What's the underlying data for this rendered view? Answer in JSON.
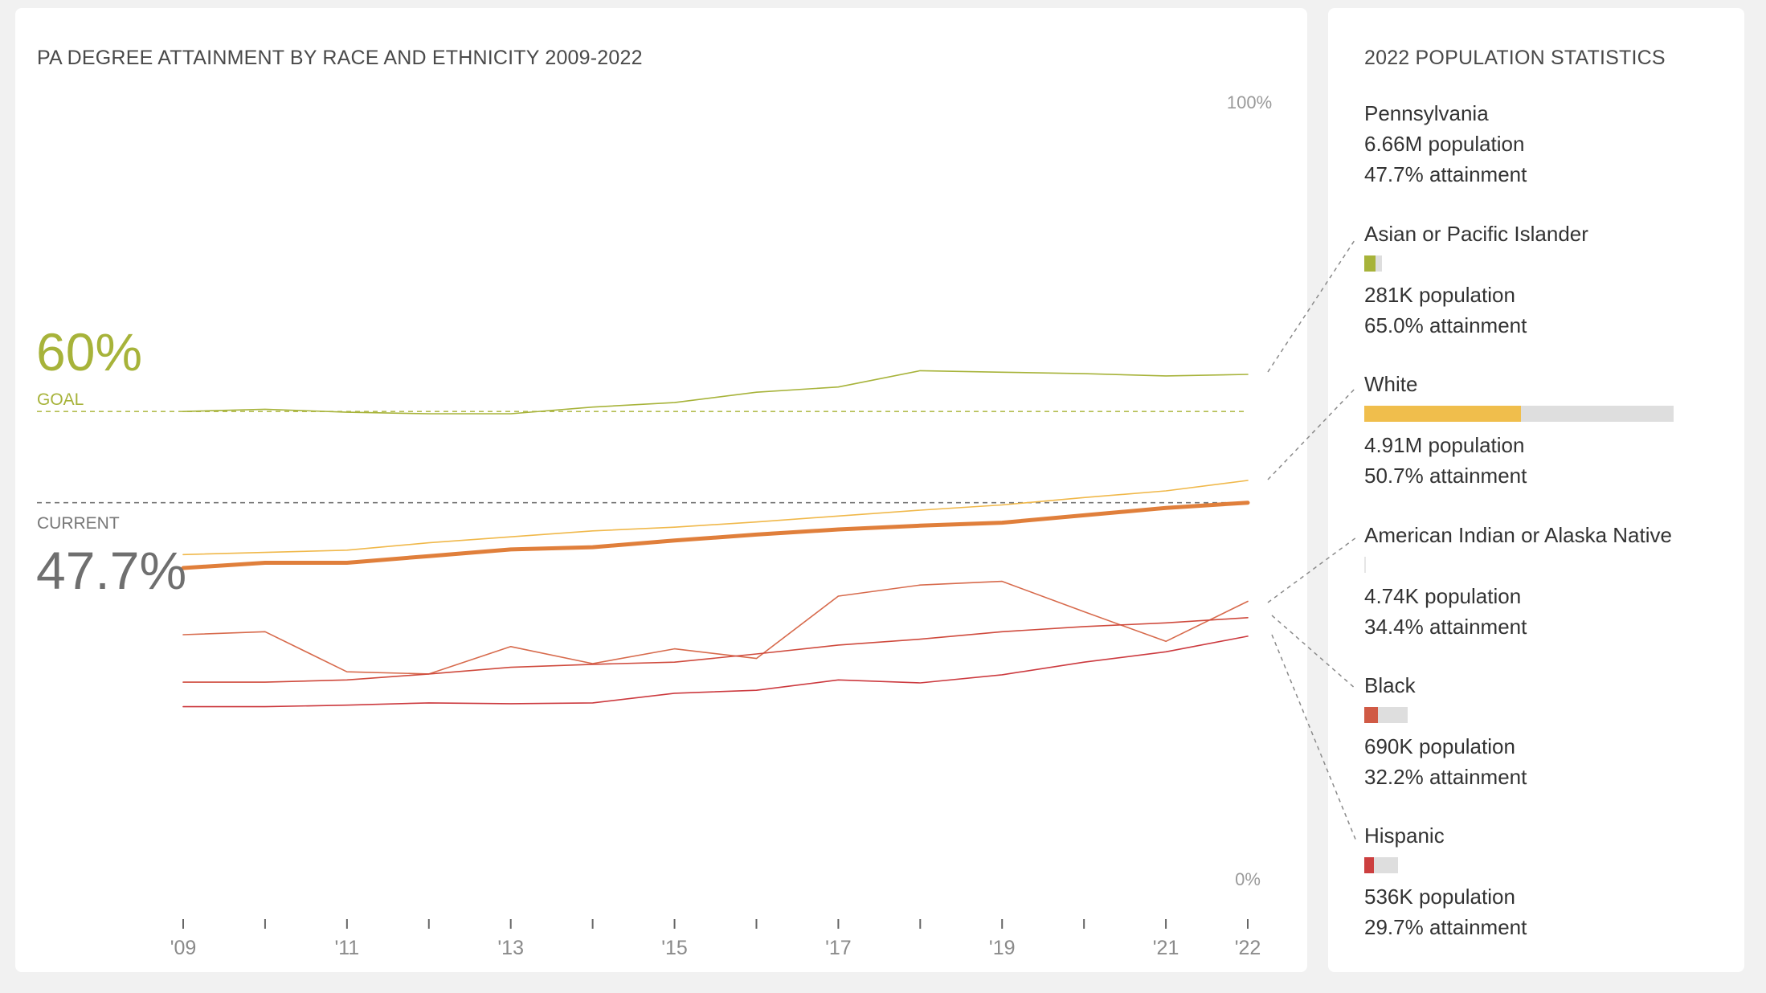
{
  "chart_panel": {
    "title": "PA DEGREE ATTAINMENT BY RACE AND ETHNICITY 2009-2022"
  },
  "goal": {
    "value": "60%",
    "label": "GOAL"
  },
  "current": {
    "value": "47.7%",
    "label": "CURRENT"
  },
  "chart_data": {
    "type": "line",
    "title": "PA DEGREE ATTAINMENT BY RACE AND ETHNICITY 2009-2022",
    "x": [
      2009,
      2010,
      2011,
      2012,
      2013,
      2014,
      2015,
      2016,
      2017,
      2018,
      2019,
      2020,
      2021,
      2022
    ],
    "x_tick_labels": [
      "'09",
      "'11",
      "'13",
      "'15",
      "'17",
      "'19",
      "'21",
      "'22"
    ],
    "x_tick_years": [
      2009,
      2011,
      2013,
      2015,
      2017,
      2019,
      2021,
      2022
    ],
    "ylim": [
      0,
      100
    ],
    "y_axis_labels": {
      "top": "100%",
      "bottom": "0%"
    },
    "goal_line": 60,
    "current_line": 47.7,
    "series": [
      {
        "name": "Asian or Pacific Islander",
        "color": "#a7b33a",
        "width": 1.6,
        "values": [
          60.0,
          60.3,
          59.9,
          59.7,
          59.7,
          60.6,
          61.2,
          62.6,
          63.3,
          65.5,
          65.3,
          65.1,
          64.8,
          65.0
        ]
      },
      {
        "name": "White",
        "color": "#f0b84a",
        "width": 1.6,
        "values": [
          40.7,
          41.0,
          41.3,
          42.3,
          43.1,
          43.9,
          44.4,
          45.1,
          45.9,
          46.7,
          47.4,
          48.4,
          49.3,
          50.7
        ]
      },
      {
        "name": "Pennsylvania",
        "color": "#e07f3b",
        "width": 5,
        "values": [
          38.9,
          39.6,
          39.6,
          40.5,
          41.4,
          41.7,
          42.6,
          43.4,
          44.1,
          44.6,
          45.0,
          46.0,
          47.0,
          47.7
        ]
      },
      {
        "name": "American Indian or Alaska Native",
        "color": "#d76a4c",
        "width": 1.6,
        "values": [
          29.9,
          30.3,
          24.9,
          24.6,
          28.3,
          26.0,
          28.0,
          26.7,
          35.1,
          36.6,
          37.1,
          33.0,
          29.0,
          34.4
        ]
      },
      {
        "name": "Black",
        "color": "#cf4a3d",
        "width": 1.6,
        "values": [
          23.5,
          23.5,
          23.8,
          24.6,
          25.5,
          25.9,
          26.2,
          27.3,
          28.5,
          29.3,
          30.3,
          31.0,
          31.5,
          32.2
        ]
      },
      {
        "name": "Hispanic",
        "color": "#cc3a3f",
        "width": 1.6,
        "values": [
          20.2,
          20.2,
          20.4,
          20.7,
          20.6,
          20.7,
          22.0,
          22.4,
          23.8,
          23.4,
          24.5,
          26.2,
          27.6,
          29.7
        ]
      }
    ]
  },
  "stats_panel": {
    "title": "2022 POPULATION STATISTICS",
    "items": [
      {
        "name": "Pennsylvania",
        "population": "6.66M population",
        "attainment": "47.7% attainment",
        "has_bar": false
      },
      {
        "name": "Asian or Pacific Islander",
        "population": "281K population",
        "attainment": "65.0% attainment",
        "has_bar": true,
        "bar_color": "#a7b33a",
        "track_fraction": 0.042,
        "fill_fraction": 0.65
      },
      {
        "name": "White",
        "population": "4.91M population",
        "attainment": "50.7% attainment",
        "has_bar": true,
        "bar_color": "#f0be4c",
        "track_fraction": 0.737,
        "fill_fraction": 0.507
      },
      {
        "name": "American Indian or Alaska Native",
        "population": "4.74K population",
        "attainment": "34.4% attainment",
        "has_bar": true,
        "bar_color": "#d76a4c",
        "track_fraction": 0.0007,
        "fill_fraction": 0.344
      },
      {
        "name": "Black",
        "population": "690K population",
        "attainment": "32.2% attainment",
        "has_bar": true,
        "bar_color": "#d05a45",
        "track_fraction": 0.104,
        "fill_fraction": 0.322
      },
      {
        "name": "Hispanic",
        "population": "536K population",
        "attainment": "29.7% attainment",
        "has_bar": true,
        "bar_color": "#cc3f3f",
        "track_fraction": 0.08,
        "fill_fraction": 0.297
      }
    ]
  }
}
